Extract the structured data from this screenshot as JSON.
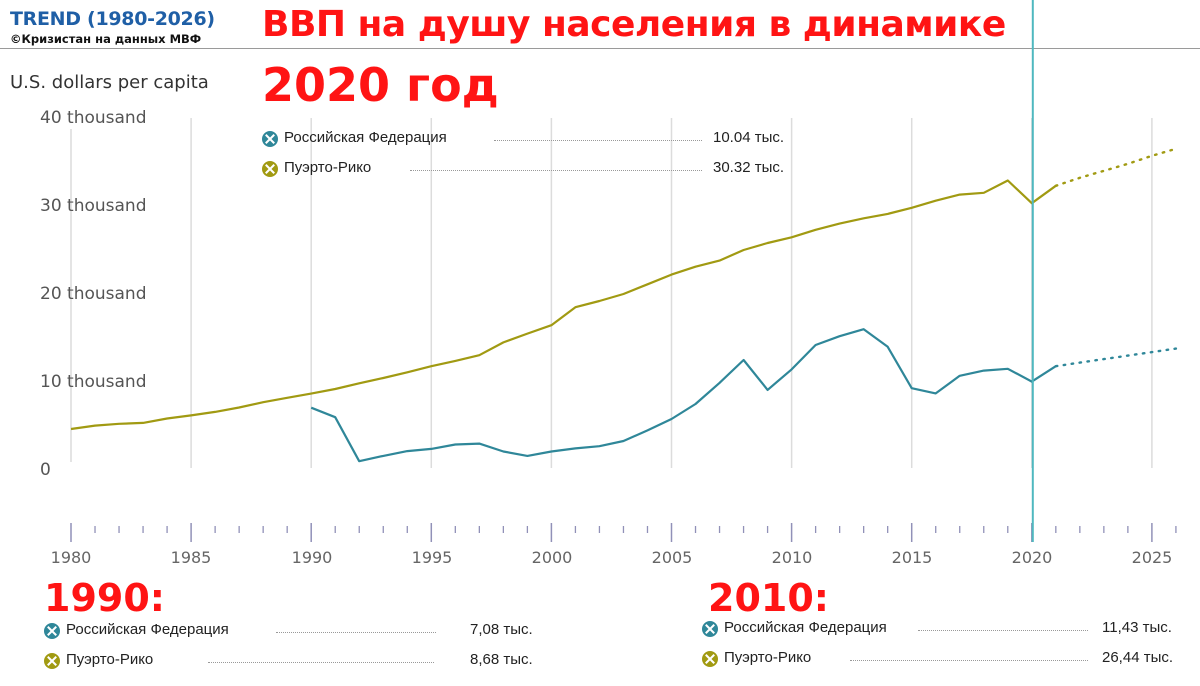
{
  "header": {
    "brand_title": "TREND (1980-2026)",
    "brand_subtitle": "©Кризистан на данных МВФ",
    "headline": "ВВП на душу населения в динамике",
    "current_year": "2020 год"
  },
  "axis": {
    "unit_label": "U.S. dollars per capita",
    "y_ticks": [
      "40 thousand",
      "30 thousand",
      "20 thousand",
      "10 thousand",
      "0"
    ],
    "x_ticks": [
      "1980",
      "1985",
      "1990",
      "1995",
      "2000",
      "2005",
      "2010",
      "2015",
      "2020",
      "2025"
    ]
  },
  "colors": {
    "russia": "#2f8799",
    "puerto_rico": "#a19a12",
    "cursor": "#4fb8bf",
    "headline": "#ff1414",
    "brand": "#1f5fa6"
  },
  "legend_2020": {
    "rows": [
      {
        "name": "Российская Федерация",
        "value": "10.04 тыс."
      },
      {
        "name": "Пуэрто-Рико",
        "value": "30.32 тыс."
      }
    ]
  },
  "legend_1990": {
    "year_label": "1990:",
    "rows": [
      {
        "name": "Российская Федерация",
        "value": "7,08 тыс."
      },
      {
        "name": "Пуэрто-Рико",
        "value": "8,68 тыс."
      }
    ]
  },
  "legend_2010": {
    "year_label": "2010:",
    "rows": [
      {
        "name": "Российская Федерация",
        "value": "11,43 тыс."
      },
      {
        "name": "Пуэрто-Рико",
        "value": "26,44 тыс."
      }
    ]
  },
  "chart_data": {
    "type": "line",
    "title": "ВВП на душу населения в динамике",
    "subtitle": "TREND (1980-2026)",
    "xlabel": "",
    "ylabel": "U.S. dollars per capita",
    "xlim": [
      1980,
      2026
    ],
    "ylim": [
      0,
      40000
    ],
    "grid": {
      "vertical": true,
      "horizontal": false
    },
    "cursor_year": 2020,
    "forecast_from": 2021,
    "series": [
      {
        "name": "Пуэрто-Рико",
        "color": "#a19a12",
        "x": [
          1980,
          1981,
          1982,
          1983,
          1984,
          1985,
          1986,
          1987,
          1988,
          1989,
          1990,
          1991,
          1992,
          1993,
          1994,
          1995,
          1996,
          1997,
          1998,
          1999,
          2000,
          2001,
          2002,
          2003,
          2004,
          2005,
          2006,
          2007,
          2008,
          2009,
          2010,
          2011,
          2012,
          2013,
          2014,
          2015,
          2016,
          2017,
          2018,
          2019,
          2020,
          2021,
          2022,
          2023,
          2024,
          2025,
          2026
        ],
        "values": [
          4660,
          5050,
          5250,
          5350,
          5850,
          6200,
          6600,
          7100,
          7700,
          8200,
          8680,
          9200,
          9850,
          10450,
          11100,
          11800,
          12400,
          13050,
          14500,
          15500,
          16450,
          18500,
          19200,
          20000,
          21100,
          22200,
          23100,
          23800,
          25000,
          25800,
          26440,
          27300,
          28000,
          28600,
          29100,
          29800,
          30600,
          31300,
          31500,
          32900,
          30320,
          32300,
          33200,
          34000,
          34800,
          35700,
          36500
        ]
      },
      {
        "name": "Российская Федерация",
        "color": "#2f8799",
        "x": [
          1990,
          1991,
          1992,
          1993,
          1994,
          1995,
          1996,
          1997,
          1998,
          1999,
          2000,
          2001,
          2002,
          2003,
          2004,
          2005,
          2006,
          2007,
          2008,
          2009,
          2010,
          2011,
          2012,
          2013,
          2014,
          2015,
          2016,
          2017,
          2018,
          2019,
          2020,
          2021,
          2022,
          2023,
          2024,
          2025,
          2026
        ],
        "values": [
          7080,
          6000,
          1000,
          1600,
          2150,
          2400,
          2900,
          3000,
          2100,
          1600,
          2100,
          2450,
          2700,
          3300,
          4500,
          5800,
          7500,
          9900,
          12500,
          9100,
          11430,
          14200,
          15200,
          16000,
          14000,
          9300,
          8700,
          10700,
          11300,
          11500,
          10040,
          11800,
          12200,
          12600,
          13000,
          13400,
          13800
        ]
      }
    ]
  }
}
